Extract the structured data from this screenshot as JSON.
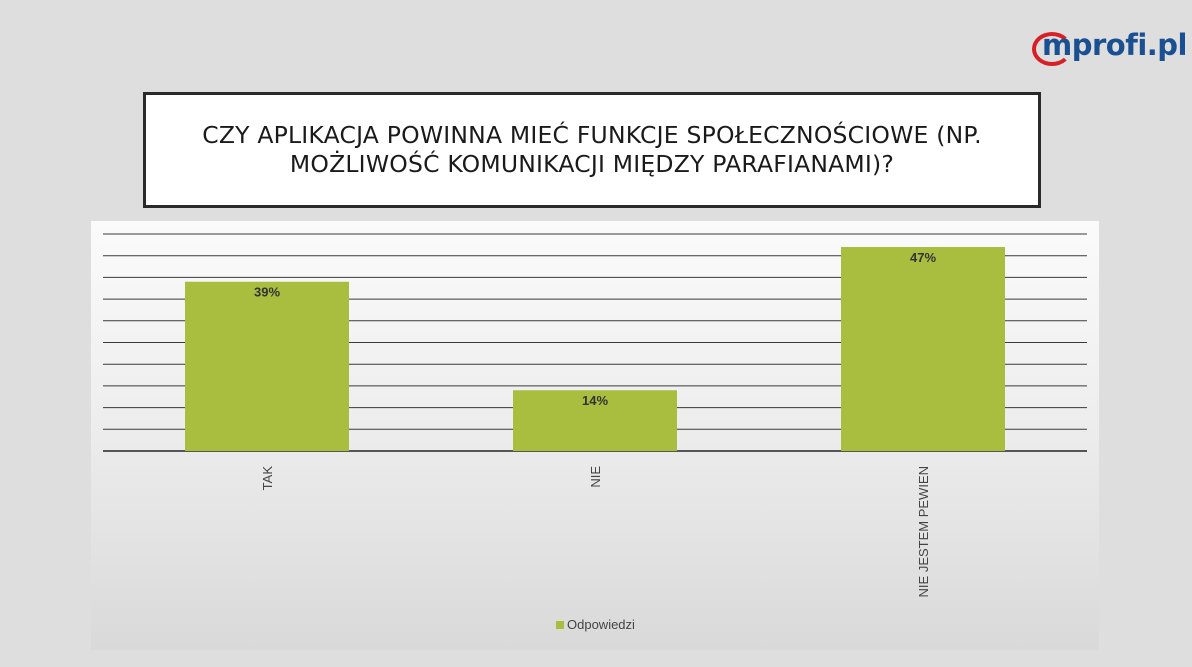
{
  "logo": {
    "text": "mprofi.pl",
    "name": "mprofi-logo"
  },
  "colors": {
    "bar": "#a9bd3f",
    "gridline": "#3a3a3a",
    "logo_blue": "#1a4f92",
    "logo_red": "#d91f26"
  },
  "chart_data": {
    "type": "bar",
    "title": "CZY APLIKACJA POWINNA MIEĆ FUNKCJE SPOŁECZNOŚCIOWE (NP. MOŻLIWOŚĆ KOMUNIKACJI MIĘDZY PARAFIANAMI)?",
    "categories": [
      "TAK",
      "NIE",
      "NIE JESTEM PEWIEN"
    ],
    "series": [
      {
        "name": "Odpowiedzi",
        "values": [
          39,
          14,
          47
        ],
        "labels": [
          "39%",
          "14%",
          "47%"
        ]
      }
    ],
    "ylim": [
      0,
      50
    ],
    "grid": true,
    "legend": "bottom-center"
  }
}
